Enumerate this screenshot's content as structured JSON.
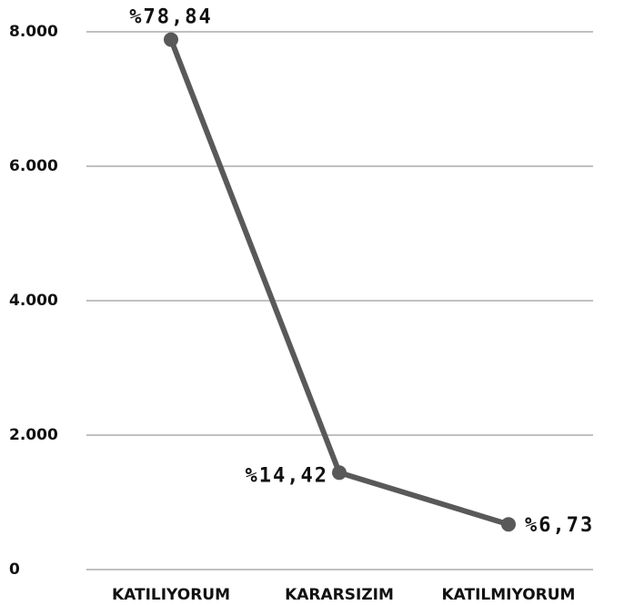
{
  "chart_data": {
    "type": "line",
    "categories": [
      "KATILIYORUM",
      "KARARSIZIM",
      "KATILMIYORUM"
    ],
    "values": [
      7884,
      1442,
      673
    ],
    "value_labels": [
      "%78,84",
      "%14,42",
      "%6,73"
    ],
    "color": "#595959",
    "ylim": [
      0,
      8000
    ],
    "yticks": [
      0,
      {
        "value": 2000,
        "label": "2.000"
      },
      {
        "value": 4000,
        "label": "4.000"
      },
      {
        "value": 6000,
        "label": "6.000"
      },
      {
        "value": 8000,
        "label": "8.000"
      }
    ],
    "grid": true
  }
}
